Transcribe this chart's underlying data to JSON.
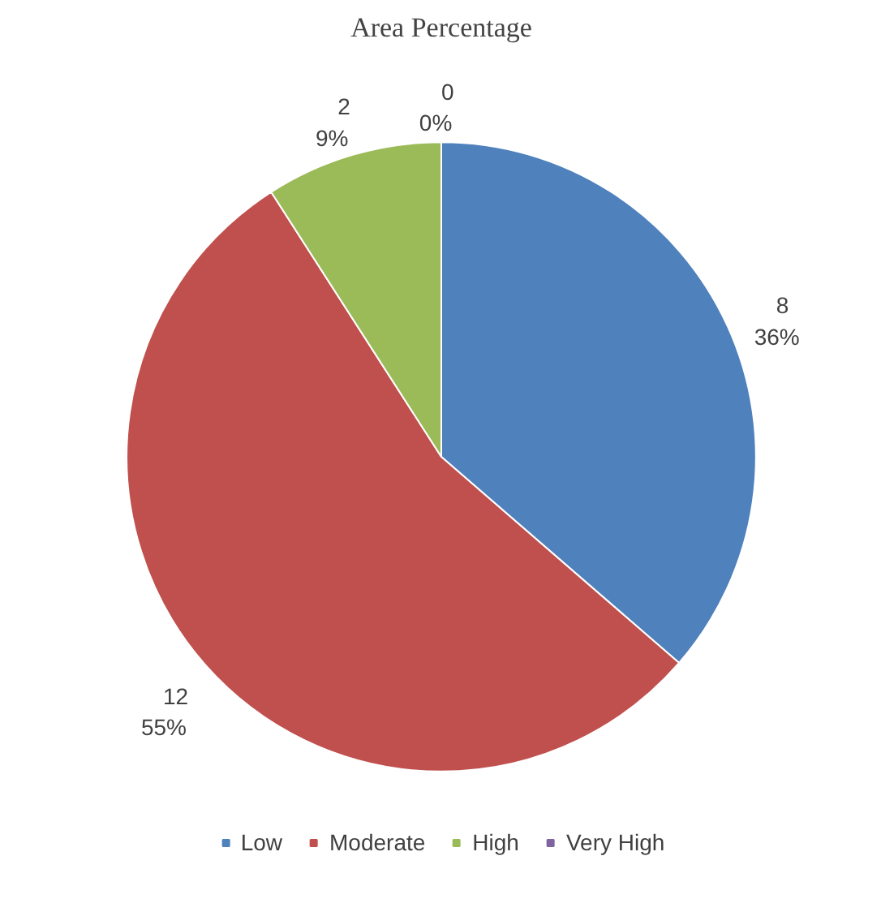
{
  "chart_data": {
    "type": "pie",
    "title": "Area Percentage",
    "categories": [
      "Low",
      "Moderate",
      "High",
      "Very High"
    ],
    "values": [
      8,
      12,
      2,
      0
    ],
    "colors": [
      "#4f81bd",
      "#c0504d",
      "#9bbb59",
      "#8064a2"
    ],
    "value_labels": [
      "8\n36%",
      "12\n55%",
      "2\n9%",
      "0\n0%"
    ],
    "legend": "bottom"
  }
}
